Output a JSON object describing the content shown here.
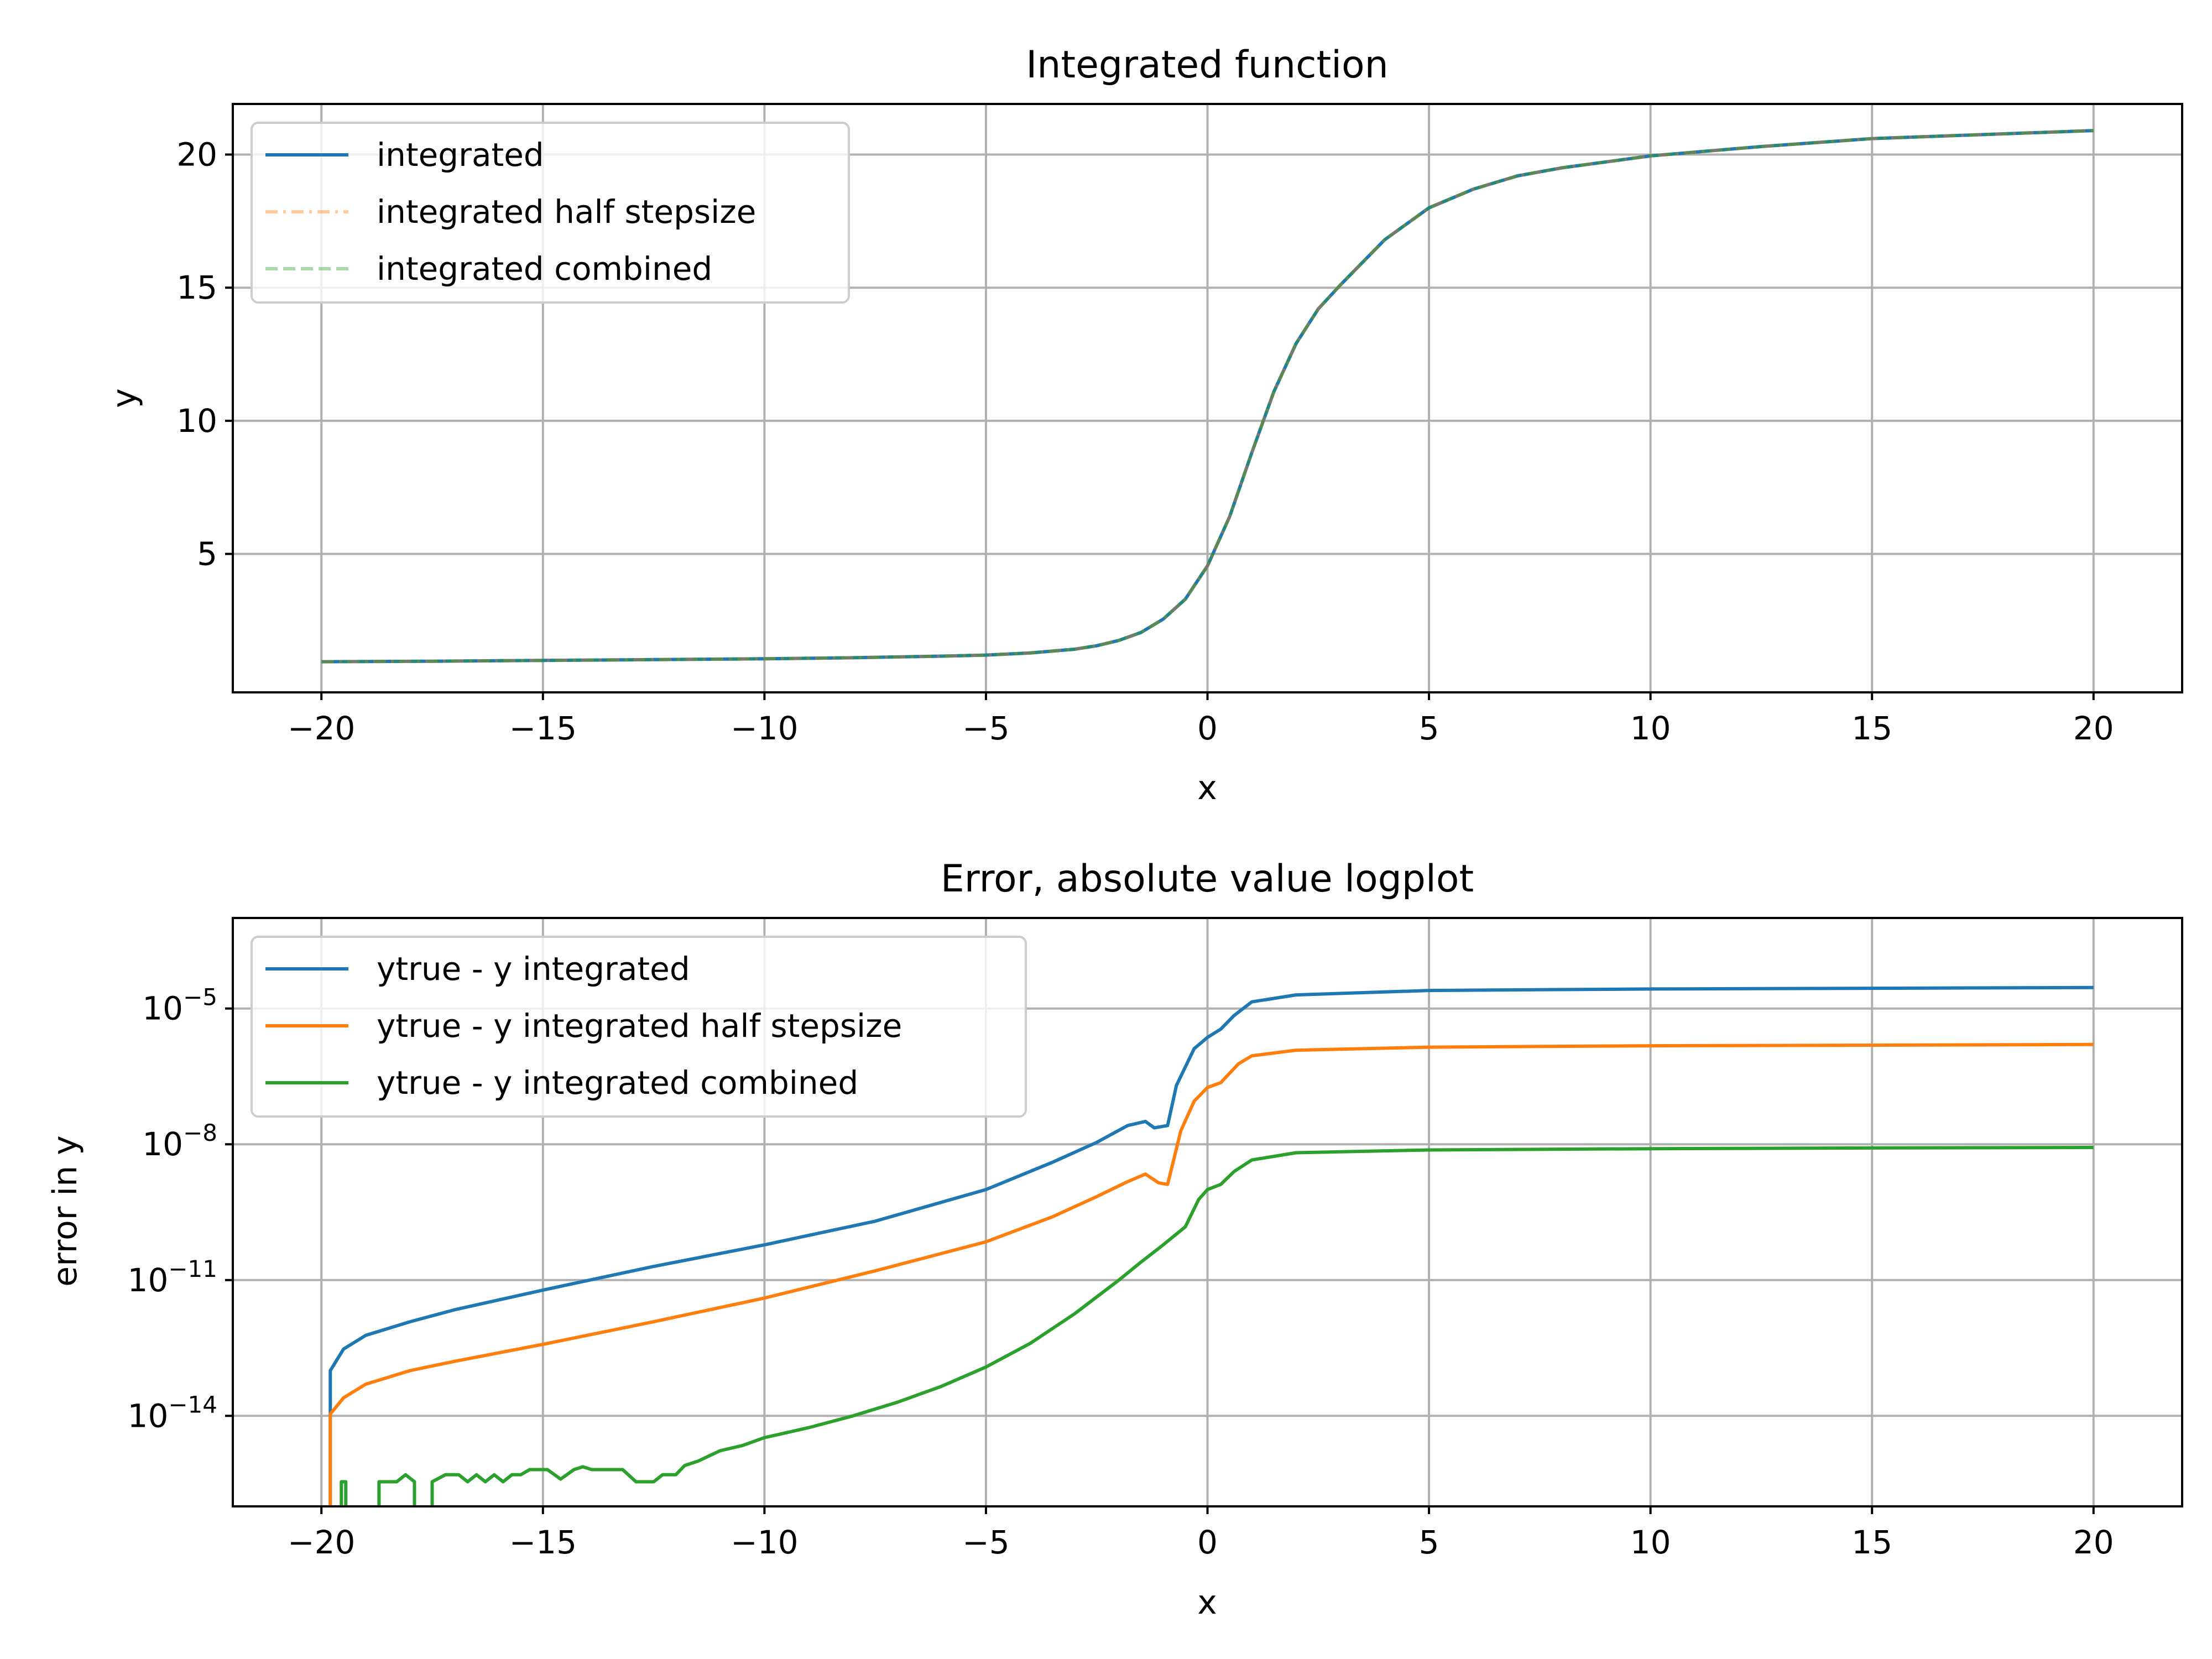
{
  "chart_data": [
    {
      "type": "line",
      "title": "Integrated function",
      "xlabel": "x",
      "ylabel": "y",
      "xlim": [
        -22,
        22
      ],
      "ylim": [
        -0.2,
        21.9
      ],
      "xticks": [
        -20,
        -15,
        -10,
        -5,
        0,
        5,
        10,
        15,
        20
      ],
      "xtick_labels": [
        "−20",
        "−15",
        "−10",
        "−5",
        "0",
        "5",
        "10",
        "15",
        "20"
      ],
      "yticks": [
        5,
        10,
        15,
        20
      ],
      "ytick_labels": [
        "5",
        "10",
        "15",
        "20"
      ],
      "grid": true,
      "legend_position": "upper-left",
      "x": [
        -20,
        -17.5,
        -15,
        -12.5,
        -10,
        -8,
        -6,
        -5,
        -4,
        -3,
        -2.5,
        -2,
        -1.5,
        -1,
        -0.5,
        0,
        0.5,
        1,
        1.5,
        2,
        2.5,
        3,
        4,
        5,
        6,
        7,
        8,
        10,
        12.5,
        15,
        17.5,
        20
      ],
      "series": [
        {
          "name": "integrated",
          "color": "#1f77b4",
          "style": "solid",
          "alpha": 1.0,
          "values": [
            0.95,
            0.97,
            1.0,
            1.03,
            1.06,
            1.1,
            1.16,
            1.2,
            1.28,
            1.42,
            1.55,
            1.75,
            2.05,
            2.55,
            3.3,
            4.55,
            6.4,
            8.8,
            11.1,
            12.9,
            14.2,
            15.1,
            16.8,
            18.0,
            18.7,
            19.2,
            19.5,
            19.95,
            20.3,
            20.6,
            20.75,
            20.9
          ]
        },
        {
          "name": "integrated half stepsize",
          "color": "#ff7f0e",
          "style": "dashdot",
          "alpha": 0.4,
          "values": [
            0.95,
            0.97,
            1.0,
            1.03,
            1.06,
            1.1,
            1.16,
            1.2,
            1.28,
            1.42,
            1.55,
            1.75,
            2.05,
            2.55,
            3.3,
            4.55,
            6.4,
            8.8,
            11.1,
            12.9,
            14.2,
            15.1,
            16.8,
            18.0,
            18.7,
            19.2,
            19.5,
            19.95,
            20.3,
            20.6,
            20.75,
            20.9
          ]
        },
        {
          "name": "integrated combined",
          "color": "#2ca02c",
          "style": "dashed",
          "alpha": 0.4,
          "values": [
            0.95,
            0.97,
            1.0,
            1.03,
            1.06,
            1.1,
            1.16,
            1.2,
            1.28,
            1.42,
            1.55,
            1.75,
            2.05,
            2.55,
            3.3,
            4.55,
            6.4,
            8.8,
            11.1,
            12.9,
            14.2,
            15.1,
            16.8,
            18.0,
            18.7,
            19.2,
            19.5,
            19.95,
            20.3,
            20.6,
            20.75,
            20.9
          ]
        }
      ]
    },
    {
      "type": "line",
      "title": "Error, absolute value logplot",
      "xlabel": "x",
      "ylabel": "error in y",
      "yscale": "log",
      "xlim": [
        -22,
        22
      ],
      "ylim": [
        1e-16,
        0.001
      ],
      "xticks": [
        -20,
        -15,
        -10,
        -5,
        0,
        5,
        10,
        15,
        20
      ],
      "xtick_labels": [
        "−20",
        "−15",
        "−10",
        "−5",
        "0",
        "5",
        "10",
        "15",
        "20"
      ],
      "yticks": [
        1e-14,
        1e-11,
        1e-08,
        1e-05
      ],
      "ytick_labels": [
        {
          "base": "10",
          "exp": "−14"
        },
        {
          "base": "10",
          "exp": "−11"
        },
        {
          "base": "10",
          "exp": "−8"
        },
        {
          "base": "10",
          "exp": "−5"
        }
      ],
      "grid": true,
      "legend_position": "upper-left",
      "series": [
        {
          "name": "ytrue - y integrated",
          "color": "#1f77b4",
          "style": "solid",
          "points": [
            [
              -19.8,
              1e-16
            ],
            [
              -19.8,
              1e-13
            ],
            [
              -19.5,
              3e-13
            ],
            [
              -19,
              6e-13
            ],
            [
              -18,
              1.2e-12
            ],
            [
              -17,
              2.2e-12
            ],
            [
              -15,
              6e-12
            ],
            [
              -12.5,
              2e-11
            ],
            [
              -10,
              6e-11
            ],
            [
              -7.5,
              2e-10
            ],
            [
              -5,
              1e-09
            ],
            [
              -3.5,
              4e-09
            ],
            [
              -2.5,
              1.1e-08
            ],
            [
              -1.8,
              2.6e-08
            ],
            [
              -1.4,
              3.2e-08
            ],
            [
              -1.2,
              2.3e-08
            ],
            [
              -0.9,
              2.6e-08
            ],
            [
              -0.7,
              2e-07
            ],
            [
              -0.3,
              1.3e-06
            ],
            [
              0,
              2.3e-06
            ],
            [
              0.3,
              3.5e-06
            ],
            [
              0.6,
              7e-06
            ],
            [
              1,
              1.4e-05
            ],
            [
              2,
              2e-05
            ],
            [
              5,
              2.5e-05
            ],
            [
              10,
              2.7e-05
            ],
            [
              15,
              2.8e-05
            ],
            [
              20,
              2.9e-05
            ]
          ]
        },
        {
          "name": "ytrue - y integrated half stepsize",
          "color": "#ff7f0e",
          "style": "solid",
          "points": [
            [
              -19.8,
              1e-16
            ],
            [
              -19.8,
              1.1e-14
            ],
            [
              -19.5,
              2.5e-14
            ],
            [
              -19,
              5e-14
            ],
            [
              -18,
              1e-13
            ],
            [
              -17,
              1.6e-13
            ],
            [
              -15,
              3.8e-13
            ],
            [
              -12.5,
              1.2e-12
            ],
            [
              -10,
              4e-12
            ],
            [
              -7.5,
              1.6e-11
            ],
            [
              -5,
              7e-11
            ],
            [
              -3.5,
              2.5e-10
            ],
            [
              -2.5,
              7e-10
            ],
            [
              -1.8,
              1.5e-09
            ],
            [
              -1.4,
              2.2e-09
            ],
            [
              -1.1,
              1.4e-09
            ],
            [
              -0.9,
              1.3e-09
            ],
            [
              -0.6,
              2e-08
            ],
            [
              -0.3,
              9e-08
            ],
            [
              0,
              1.8e-07
            ],
            [
              0.3,
              2.3e-07
            ],
            [
              0.7,
              6e-07
            ],
            [
              1,
              9e-07
            ],
            [
              2,
              1.2e-06
            ],
            [
              5,
              1.4e-06
            ],
            [
              10,
              1.5e-06
            ],
            [
              15,
              1.55e-06
            ],
            [
              20,
              1.6e-06
            ]
          ]
        },
        {
          "name": "ytrue - y integrated combined",
          "color": "#2ca02c",
          "style": "solid",
          "points": [
            [
              -19.55,
              1e-16
            ],
            [
              -19.55,
              3.5e-16
            ],
            [
              -19.45,
              3.5e-16
            ],
            [
              -19.45,
              1e-16
            ],
            [
              null,
              null
            ],
            [
              -18.7,
              1e-16
            ],
            [
              -18.7,
              3.5e-16
            ],
            [
              -18.3,
              3.5e-16
            ],
            [
              -18.1,
              5e-16
            ],
            [
              -17.9,
              3.5e-16
            ],
            [
              -17.9,
              1e-16
            ],
            [
              null,
              null
            ],
            [
              -17.5,
              1e-16
            ],
            [
              -17.5,
              3.5e-16
            ],
            [
              -17.2,
              5e-16
            ],
            [
              -16.9,
              5e-16
            ],
            [
              -16.7,
              3.5e-16
            ],
            [
              -16.5,
              5e-16
            ],
            [
              -16.3,
              3.5e-16
            ],
            [
              -16.1,
              5e-16
            ],
            [
              -15.9,
              3.5e-16
            ],
            [
              -15.7,
              5e-16
            ],
            [
              -15.5,
              5e-16
            ],
            [
              -15.3,
              6.5e-16
            ],
            [
              -14.9,
              6.5e-16
            ],
            [
              -14.6,
              4e-16
            ],
            [
              -14.3,
              6.5e-16
            ],
            [
              -14.1,
              7.5e-16
            ],
            [
              -13.9,
              6.5e-16
            ],
            [
              -13.2,
              6.5e-16
            ],
            [
              -12.9,
              3.5e-16
            ],
            [
              -12.5,
              3.5e-16
            ],
            [
              -12.3,
              5e-16
            ],
            [
              -12,
              5e-16
            ],
            [
              -11.8,
              8e-16
            ],
            [
              -11.5,
              1e-15
            ],
            [
              -11,
              1.7e-15
            ],
            [
              -10.5,
              2.2e-15
            ],
            [
              -10,
              3.3e-15
            ],
            [
              -9,
              5.5e-15
            ],
            [
              -8,
              1e-14
            ],
            [
              -7,
              2e-14
            ],
            [
              -6,
              4.5e-14
            ],
            [
              -5,
              1.2e-13
            ],
            [
              -4,
              4e-13
            ],
            [
              -3,
              1.8e-12
            ],
            [
              -2,
              1e-11
            ],
            [
              -1.5,
              2.5e-11
            ],
            [
              -1,
              6e-11
            ],
            [
              -0.5,
              1.5e-10
            ],
            [
              -0.2,
              6e-10
            ],
            [
              0,
              1e-09
            ],
            [
              0.3,
              1.3e-09
            ],
            [
              0.6,
              2.5e-09
            ],
            [
              1,
              4.5e-09
            ],
            [
              2,
              6.5e-09
            ],
            [
              5,
              7.5e-09
            ],
            [
              10,
              8e-09
            ],
            [
              15,
              8.3e-09
            ],
            [
              20,
              8.5e-09
            ]
          ]
        }
      ]
    }
  ]
}
